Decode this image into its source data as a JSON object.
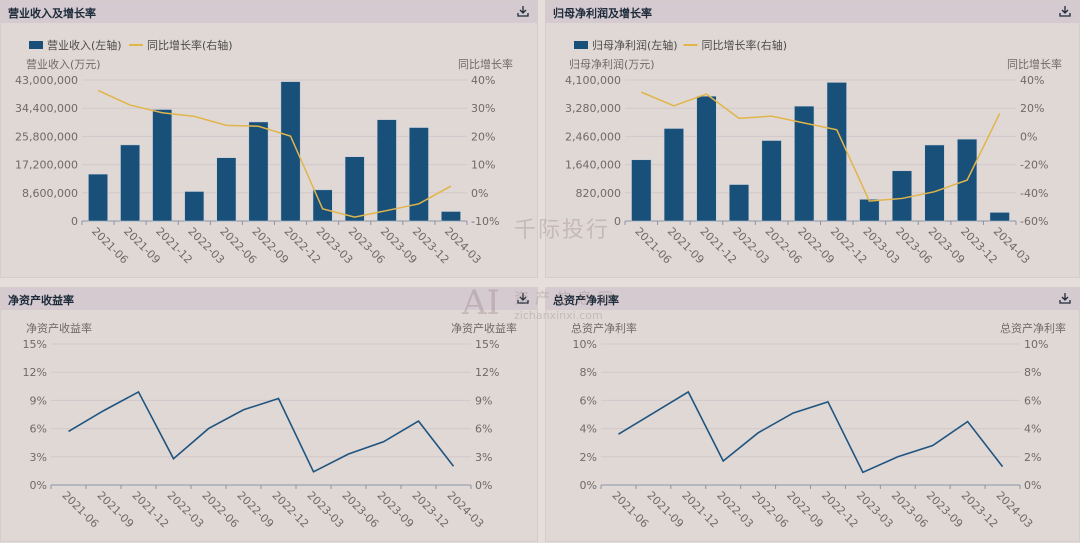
{
  "panels": [
    {
      "title": "营业收入及增长率",
      "download_icon": "download-icon"
    },
    {
      "title": "归母净利润及增长率",
      "download_icon": "download-icon"
    },
    {
      "title": "净资产收益率",
      "download_icon": "download-icon"
    },
    {
      "title": "总资产净利率",
      "download_icon": "download-icon"
    }
  ],
  "watermark": {
    "brand": "千际投行",
    "site_cn": "资产信息网",
    "site_url": "zichanxinxi.com",
    "logo": "AI"
  },
  "colors": {
    "bar": "#18507a",
    "growth_line": "#e1b54a",
    "ratio_line": "#1f5580",
    "grid": "#d3c8cc",
    "axis_text": "#6e6a6a"
  },
  "chart_data": [
    {
      "type": "bar+line",
      "categories": [
        "2021-06",
        "2021-09",
        "2021-12",
        "2022-03",
        "2022-06",
        "2022-09",
        "2022-12",
        "2023-03",
        "2023-06",
        "2023-09",
        "2023-12",
        "2024-03"
      ],
      "legend": [
        "营业收入(左轴)",
        "同比增长率(右轴)"
      ],
      "legend_position": "top-left",
      "ylabel_left": "营业收入(万元)",
      "ylabel_right": "同比增长率",
      "yticks_left": [
        "0",
        "8,600,000",
        "17,200,000",
        "25,800,000",
        "34,400,000",
        "43,000,000"
      ],
      "yticks_right": [
        "-10%",
        "0%",
        "10%",
        "20%",
        "30%",
        "40%"
      ],
      "ylim_left": [
        0,
        43000000
      ],
      "ylim_right": [
        -10,
        40
      ],
      "grid": true,
      "series": [
        {
          "name": "营业收入(左轴)",
          "type": "bar",
          "values": [
            14300000,
            23200000,
            34000000,
            9000000,
            19300000,
            30200000,
            42500000,
            9500000,
            19600000,
            30900000,
            28500000,
            2900000
          ]
        },
        {
          "name": "同比增长率(右轴)",
          "type": "line",
          "values": [
            36.3,
            31.1,
            28.4,
            27.1,
            23.9,
            23.6,
            20.1,
            -5.7,
            -8.6,
            -6.3,
            -3.9,
            2.4
          ]
        }
      ]
    },
    {
      "type": "bar+line",
      "categories": [
        "2021-06",
        "2021-09",
        "2021-12",
        "2022-03",
        "2022-06",
        "2022-09",
        "2022-12",
        "2023-03",
        "2023-06",
        "2023-09",
        "2023-12",
        "2024-03"
      ],
      "legend": [
        "归母净利润(左轴)",
        "同比增长率(右轴)"
      ],
      "legend_position": "top-left",
      "ylabel_left": "归母净利润(万元)",
      "ylabel_right": "同比增长率",
      "yticks_left": [
        "0",
        "820,000",
        "1,640,000",
        "2,460,000",
        "3,280,000",
        "4,100,000"
      ],
      "yticks_right": [
        "-60%",
        "-40%",
        "-20%",
        "0%",
        "20%",
        "40%"
      ],
      "ylim_left": [
        0,
        4100000
      ],
      "ylim_right": [
        -60,
        40
      ],
      "grid": true,
      "series": [
        {
          "name": "归母净利润(左轴)",
          "type": "bar",
          "values": [
            1780000,
            2690000,
            3630000,
            1060000,
            2340000,
            3340000,
            4030000,
            630000,
            1460000,
            2210000,
            2380000,
            250000
          ]
        },
        {
          "name": "同比增长率(右轴)",
          "type": "line",
          "values": [
            31.4,
            21.7,
            30.0,
            12.8,
            14.4,
            9.5,
            4.7,
            -45.9,
            -44.0,
            -39.2,
            -31.0,
            16.3
          ]
        }
      ]
    },
    {
      "type": "line",
      "categories": [
        "2021-06",
        "2021-09",
        "2021-12",
        "2022-03",
        "2022-06",
        "2022-09",
        "2022-12",
        "2023-03",
        "2023-06",
        "2023-09",
        "2023-12",
        "2024-03"
      ],
      "ylabel_left": "净资产收益率",
      "ylabel_right": "净资产收益率",
      "yticks_left": [
        "0%",
        "3%",
        "6%",
        "9%",
        "12%",
        "15%"
      ],
      "yticks_right": [
        "0%",
        "3%",
        "6%",
        "9%",
        "12%",
        "15%"
      ],
      "ylim_left": [
        0,
        15
      ],
      "grid": true,
      "series": [
        {
          "type": "line",
          "values": [
            5.7,
            7.9,
            9.9,
            2.8,
            6.0,
            8.0,
            9.2,
            1.4,
            3.3,
            4.6,
            6.8,
            2.0
          ]
        }
      ]
    },
    {
      "type": "line",
      "categories": [
        "2021-06",
        "2021-09",
        "2021-12",
        "2022-03",
        "2022-06",
        "2022-09",
        "2022-12",
        "2023-03",
        "2023-06",
        "2023-09",
        "2023-12",
        "2024-03"
      ],
      "ylabel_left": "总资产净利率",
      "ylabel_right": "总资产净利率",
      "yticks_left": [
        "0%",
        "2%",
        "4%",
        "6%",
        "8%",
        "10%"
      ],
      "yticks_right": [
        "0%",
        "2%",
        "4%",
        "6%",
        "8%",
        "10%"
      ],
      "ylim_left": [
        0,
        10
      ],
      "grid": true,
      "series": [
        {
          "type": "line",
          "values": [
            3.6,
            5.1,
            6.6,
            1.7,
            3.7,
            5.1,
            5.9,
            0.9,
            2.0,
            2.8,
            4.5,
            1.3
          ]
        }
      ]
    }
  ]
}
